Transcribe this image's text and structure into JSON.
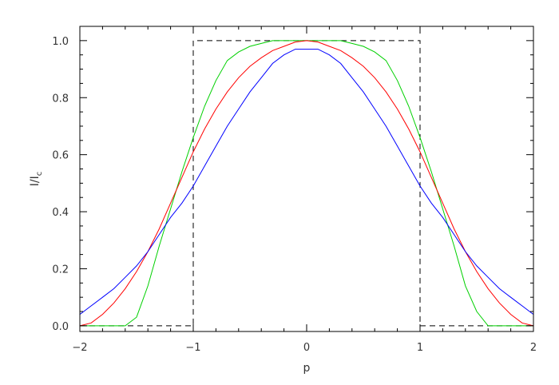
{
  "chart_data": {
    "type": "line",
    "title": "",
    "xlabel": "p",
    "ylabel_main": "I/I",
    "ylabel_sub": "c",
    "xlim": [
      -2,
      2
    ],
    "ylim": [
      -0.02,
      1.05
    ],
    "xticks": [
      -2,
      -1,
      0,
      1,
      2
    ],
    "xtick_labels": [
      "−2",
      "−1",
      "0",
      "1",
      "2"
    ],
    "yticks": [
      0.0,
      0.2,
      0.4,
      0.6,
      0.8,
      1.0
    ],
    "ytick_labels": [
      "0.0",
      "0.2",
      "0.4",
      "0.6",
      "0.8",
      "1.0"
    ],
    "grid": false,
    "legend": "none",
    "series": [
      {
        "color": "#000000",
        "dash": "dashed",
        "x": [
          -2.0,
          -1.0,
          -1.0,
          1.0,
          1.0,
          2.0
        ],
        "y": [
          0.0,
          0.0,
          1.0,
          1.0,
          0.0,
          0.0
        ]
      },
      {
        "color": "#00d000",
        "dash": "solid",
        "x": [
          -2.0,
          -1.9,
          -1.8,
          -1.7,
          -1.6,
          -1.5,
          -1.4,
          -1.3,
          -1.2,
          -1.1,
          -1.0,
          -0.9,
          -0.8,
          -0.7,
          -0.6,
          -0.5,
          -0.4,
          -0.3,
          -0.2,
          -0.1,
          0.0,
          0.1,
          0.2,
          0.3,
          0.4,
          0.5,
          0.6,
          0.7,
          0.8,
          0.9,
          1.0,
          1.1,
          1.2,
          1.3,
          1.4,
          1.5,
          1.6,
          1.7,
          1.8,
          1.9,
          2.0
        ],
        "y": [
          0.0,
          0.0,
          0.0,
          0.0,
          0.0,
          0.03,
          0.14,
          0.28,
          0.41,
          0.54,
          0.66,
          0.77,
          0.86,
          0.93,
          0.96,
          0.98,
          0.99,
          1.0,
          1.0,
          1.0,
          1.0,
          1.0,
          1.0,
          1.0,
          0.99,
          0.98,
          0.96,
          0.93,
          0.86,
          0.77,
          0.66,
          0.54,
          0.41,
          0.28,
          0.14,
          0.05,
          0.0,
          0.0,
          0.0,
          0.0,
          0.0
        ]
      },
      {
        "color": "#ff0000",
        "dash": "solid",
        "x": [
          -2.0,
          -1.9,
          -1.8,
          -1.7,
          -1.6,
          -1.5,
          -1.4,
          -1.3,
          -1.2,
          -1.1,
          -1.0,
          -0.9,
          -0.8,
          -0.7,
          -0.6,
          -0.5,
          -0.4,
          -0.3,
          -0.2,
          -0.1,
          0.0,
          0.1,
          0.2,
          0.3,
          0.4,
          0.5,
          0.6,
          0.7,
          0.8,
          0.9,
          1.0,
          1.1,
          1.2,
          1.3,
          1.4,
          1.5,
          1.6,
          1.7,
          1.8,
          1.9,
          2.0
        ],
        "y": [
          0.0,
          0.01,
          0.04,
          0.08,
          0.13,
          0.19,
          0.26,
          0.34,
          0.43,
          0.52,
          0.61,
          0.69,
          0.76,
          0.82,
          0.87,
          0.91,
          0.94,
          0.965,
          0.98,
          0.995,
          1.0,
          0.995,
          0.98,
          0.965,
          0.94,
          0.91,
          0.87,
          0.82,
          0.76,
          0.69,
          0.61,
          0.52,
          0.43,
          0.34,
          0.26,
          0.19,
          0.13,
          0.08,
          0.04,
          0.01,
          0.0
        ]
      },
      {
        "color": "#0000ff",
        "dash": "solid",
        "x": [
          -2.0,
          -1.9,
          -1.8,
          -1.7,
          -1.6,
          -1.5,
          -1.4,
          -1.3,
          -1.2,
          -1.1,
          -1.0,
          -0.9,
          -0.8,
          -0.7,
          -0.6,
          -0.5,
          -0.4,
          -0.3,
          -0.2,
          -0.1,
          0.0,
          0.1,
          0.2,
          0.3,
          0.4,
          0.5,
          0.6,
          0.7,
          0.8,
          0.9,
          1.0,
          1.1,
          1.2,
          1.3,
          1.4,
          1.5,
          1.6,
          1.7,
          1.8,
          1.9,
          2.0
        ],
        "y": [
          0.04,
          0.07,
          0.1,
          0.13,
          0.17,
          0.21,
          0.26,
          0.32,
          0.38,
          0.43,
          0.49,
          0.56,
          0.63,
          0.7,
          0.76,
          0.82,
          0.87,
          0.92,
          0.95,
          0.97,
          0.97,
          0.97,
          0.95,
          0.92,
          0.87,
          0.82,
          0.76,
          0.7,
          0.63,
          0.56,
          0.49,
          0.43,
          0.38,
          0.32,
          0.26,
          0.21,
          0.17,
          0.13,
          0.1,
          0.07,
          0.04
        ]
      }
    ]
  }
}
